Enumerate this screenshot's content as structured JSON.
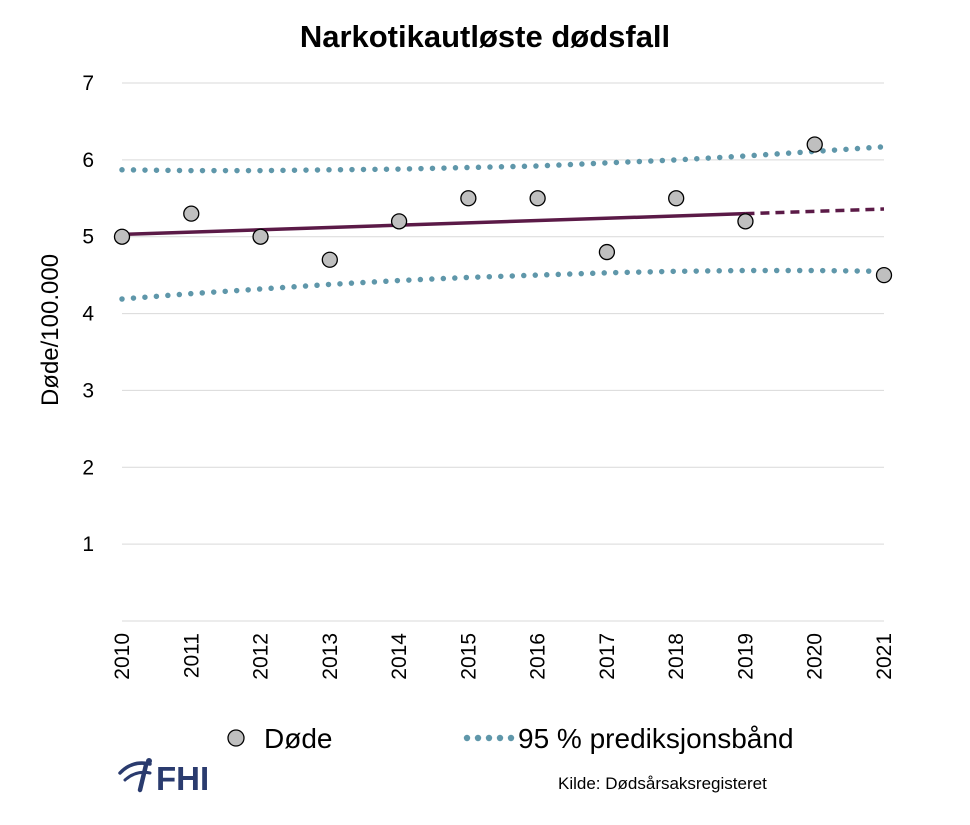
{
  "chart_data": {
    "type": "scatter",
    "title": "Narkotikautløste dødsfall",
    "ylabel": "Døde/100.000",
    "xlabel": "",
    "x_categories": [
      "2010",
      "2011",
      "2012",
      "2013",
      "2014",
      "2015",
      "2016",
      "2017",
      "2018",
      "2019",
      "2020",
      "2021"
    ],
    "ylim": [
      0,
      7
    ],
    "yticks": [
      1,
      2,
      3,
      4,
      5,
      6,
      7
    ],
    "grid": true,
    "series": [
      {
        "name": "Døde",
        "kind": "markers",
        "color": "#bfbfbf",
        "values": [
          5.0,
          5.3,
          5.0,
          4.7,
          5.2,
          5.5,
          5.5,
          4.8,
          5.5,
          5.2,
          6.2,
          4.5
        ]
      },
      {
        "kind": "trend-line",
        "color": "#5b1a47",
        "solid_until": "2019",
        "values": [
          5.03,
          5.06,
          5.09,
          5.12,
          5.15,
          5.18,
          5.21,
          5.24,
          5.27,
          5.3,
          5.33,
          5.36
        ]
      },
      {
        "name": "95 % prediksjonsbånd",
        "kind": "dotted-band-upper",
        "color": "#5f97aa",
        "values": [
          5.87,
          5.86,
          5.86,
          5.87,
          5.88,
          5.9,
          5.92,
          5.96,
          6.0,
          6.05,
          6.11,
          6.17
        ]
      },
      {
        "kind": "dotted-band-lower",
        "color": "#5f97aa",
        "values": [
          4.19,
          4.26,
          4.32,
          4.38,
          4.43,
          4.47,
          4.5,
          4.53,
          4.55,
          4.56,
          4.56,
          4.55
        ]
      }
    ],
    "legend": {
      "placement": "bottom",
      "entries": [
        "Døde",
        "95 % prediksjonsbånd"
      ]
    }
  },
  "logo": {
    "text": "FHI",
    "color": "#2a3b6e"
  },
  "source": {
    "text": "Kilde: Dødsårsaksregisteret"
  }
}
